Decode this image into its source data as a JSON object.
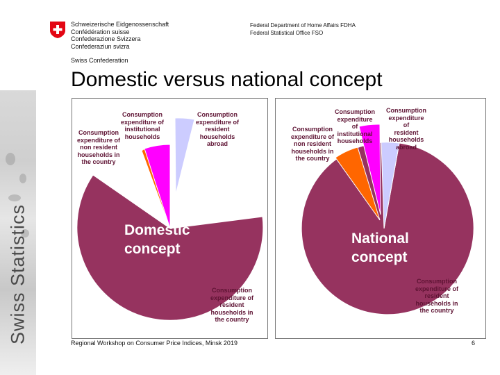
{
  "header": {
    "confederation_lines": [
      "Schweizerische Eidgenossenschaft",
      "Confédération suisse",
      "Confederazione Svizzera",
      "Confederaziun svizra"
    ],
    "swiss_confederation": "Swiss Confederation",
    "department_line1": "Federal Department of Home Affairs FDHA",
    "department_line2": "Federal Statistical Office FSO"
  },
  "sidebar": {
    "brand": "Swiss Statistics"
  },
  "slide": {
    "title": "Domestic versus national concept"
  },
  "colors": {
    "maroon": "#96335f",
    "orange": "#ff6600",
    "magenta": "#ff00ff",
    "lavender": "#ccccff",
    "label_text": "#5e1333"
  },
  "domestic": {
    "caption": "Domestic\nconcept",
    "labels": {
      "resident_in_country": "Consumption\nexpenditure of\nresident\nhouseholds in\nthe country",
      "non_resident": "Consumption\nexpenditure of\nnon resident\nhouseholds in\nthe country",
      "institutional": "Consumption\nexpenditure of\ninstitutional\nhouseholds",
      "resident_abroad": "Consumption\nexpenditure of\nresident\nhouseholds\nabroad"
    }
  },
  "national": {
    "caption": "National\nconcept",
    "labels": {
      "non_resident": "Consumption\nexpenditure of\nnon resident\nhouseholds in\nthe country",
      "institutional": "Consumption\nexpenditure\nof\ninstitutional\nhouseholds",
      "resident_abroad": "Consumption\nexpenditure\nof\nresident\nhouseholds\nabroad",
      "resident_in_country": "Consumption\nexpenditure of\nresident\nhouseholds in\nthe country"
    }
  },
  "footer": {
    "text": "Regional Workshop on Consumer Price Indices, Minsk 2019",
    "page": "6"
  }
}
